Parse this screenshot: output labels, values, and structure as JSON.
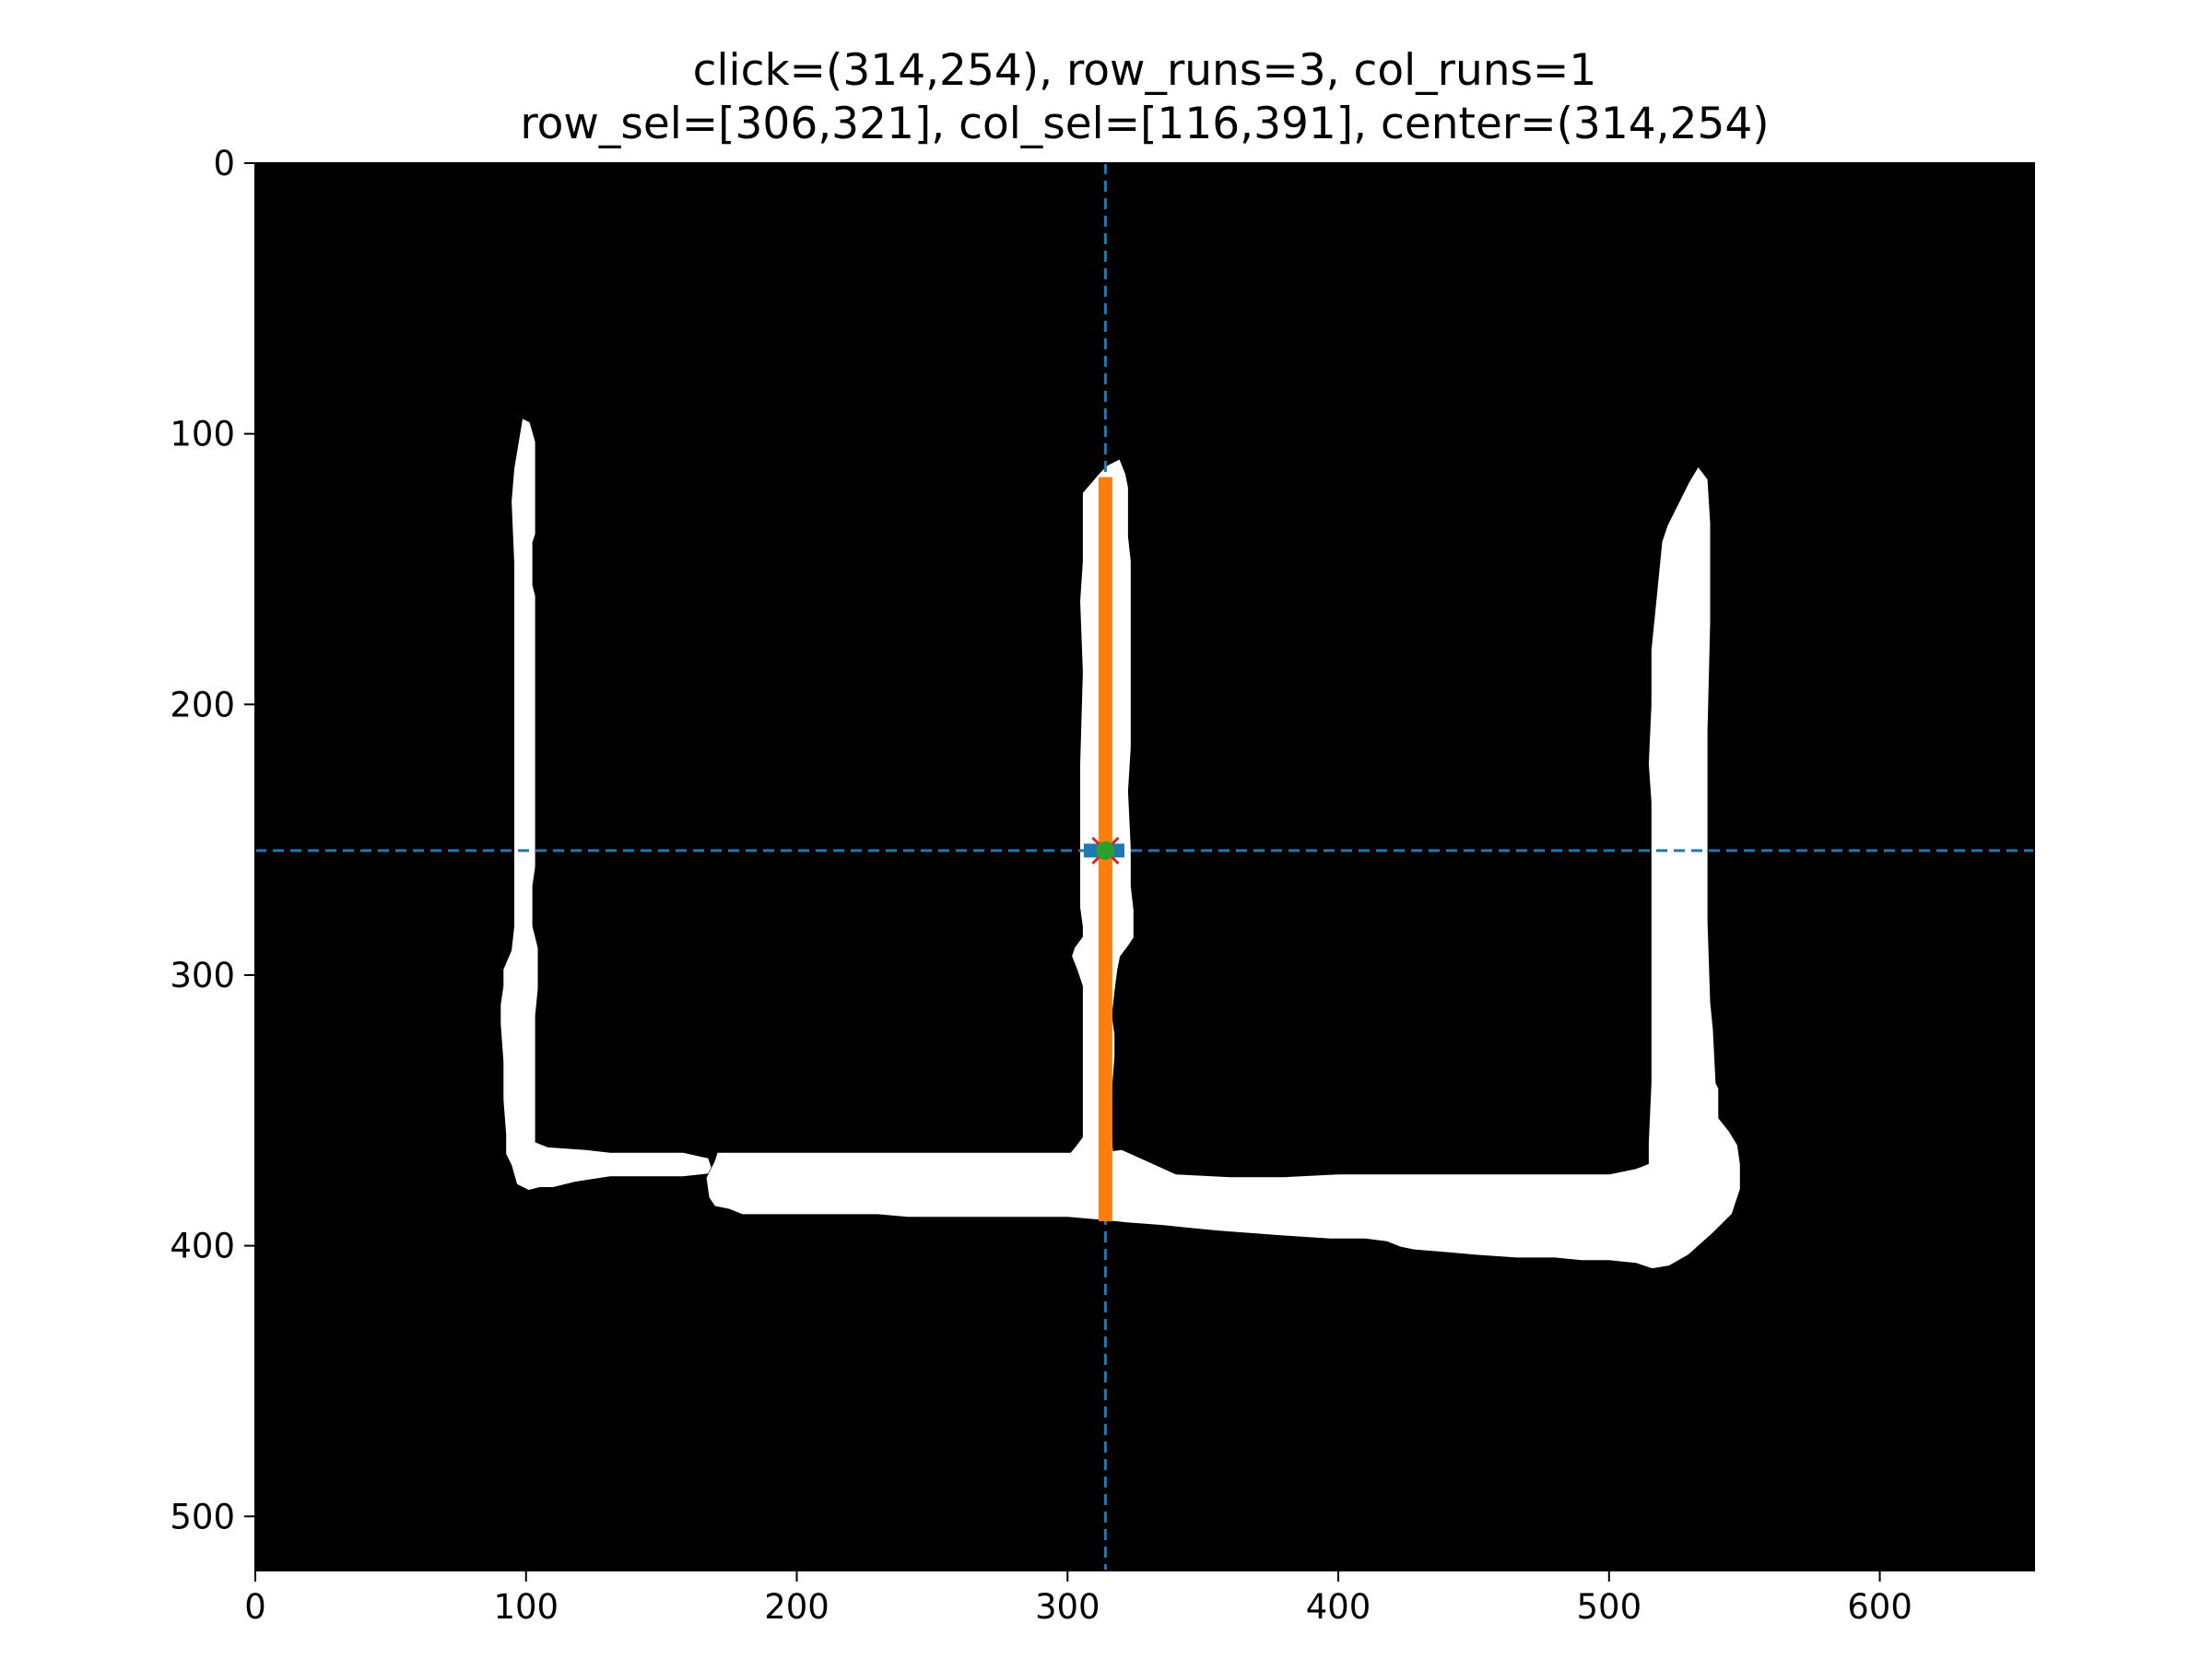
{
  "chart_data": {
    "type": "image",
    "title_lines": [
      "click=(314,254), row_runs=3, col_runs=1",
      "row_sel=[306,321], col_sel=[116,391], center=(314,254)"
    ],
    "xlim": [
      0,
      657
    ],
    "ylim": [
      520,
      0
    ],
    "x_ticks": [
      "0",
      "100",
      "200",
      "300",
      "400",
      "500",
      "600"
    ],
    "y_ticks": [
      "0",
      "100",
      "200",
      "300",
      "400",
      "500"
    ],
    "grid": false,
    "background_color": "#000000",
    "stroke_color": "#ffffff",
    "click": {
      "x": 314,
      "y": 254
    },
    "center": {
      "x": 314,
      "y": 254
    },
    "row_runs": 3,
    "col_runs": 1,
    "row_sel": {
      "y": 254,
      "x_from": 306,
      "x_to": 321,
      "color": "#1f77b4"
    },
    "col_sel": {
      "x": 314,
      "y_from": 116,
      "y_to": 391,
      "color": "#ff7f0e"
    },
    "guide_color": "#1f77b4",
    "marker_x_color": "#d62728",
    "marker_dot_color": "#2ca02c",
    "strokes": [
      {
        "name": "left-stroke",
        "points": [
          [
            99,
            95
          ],
          [
            101,
            96
          ],
          [
            103,
            103
          ],
          [
            103,
            137
          ],
          [
            102,
            140
          ],
          [
            102,
            156
          ],
          [
            103,
            160
          ],
          [
            103,
            260
          ],
          [
            102,
            267
          ],
          [
            102,
            282
          ],
          [
            104,
            290
          ],
          [
            104,
            305
          ],
          [
            103,
            315
          ],
          [
            103,
            362
          ],
          [
            108,
            364
          ],
          [
            122,
            365
          ],
          [
            131,
            366
          ],
          [
            158,
            366
          ],
          [
            167,
            368
          ],
          [
            168,
            371
          ],
          [
            167,
            373
          ],
          [
            158,
            374
          ],
          [
            131,
            374
          ],
          [
            118,
            376
          ],
          [
            110,
            378
          ],
          [
            105,
            378
          ],
          [
            101,
            379
          ],
          [
            97,
            377
          ],
          [
            95,
            370
          ],
          [
            93,
            366
          ],
          [
            93,
            359
          ],
          [
            92,
            346
          ],
          [
            92,
            332
          ],
          [
            91,
            318
          ],
          [
            91,
            311
          ],
          [
            92,
            304
          ],
          [
            92,
            298
          ],
          [
            95,
            291
          ],
          [
            96,
            282
          ],
          [
            96,
            266
          ],
          [
            96,
            168
          ],
          [
            96,
            148
          ],
          [
            95,
            125
          ],
          [
            96,
            113
          ]
        ]
      },
      {
        "name": "middle-stroke",
        "points": [
          [
            319,
            110
          ],
          [
            321,
            115
          ],
          [
            322,
            120
          ],
          [
            322,
            138
          ],
          [
            323,
            147
          ],
          [
            323,
            170
          ],
          [
            323,
            216
          ],
          [
            322,
            232
          ],
          [
            323,
            253
          ],
          [
            323,
            267
          ],
          [
            324,
            276
          ],
          [
            324,
            286
          ],
          [
            322,
            289
          ],
          [
            319,
            293
          ],
          [
            318,
            298
          ],
          [
            317,
            306
          ],
          [
            316,
            315
          ],
          [
            317,
            322
          ],
          [
            317,
            330
          ],
          [
            316,
            343
          ],
          [
            316,
            360
          ],
          [
            317,
            372
          ],
          [
            308,
            373
          ],
          [
            302,
            372
          ],
          [
            298,
            370
          ],
          [
            303,
            364
          ],
          [
            306,
            360
          ],
          [
            306,
            343
          ],
          [
            306,
            320
          ],
          [
            306,
            304
          ],
          [
            304,
            298
          ],
          [
            302,
            293
          ],
          [
            303,
            290
          ],
          [
            306,
            286
          ],
          [
            306,
            282
          ],
          [
            305,
            275
          ],
          [
            305,
            258
          ],
          [
            305,
            222
          ],
          [
            306,
            188
          ],
          [
            305,
            162
          ],
          [
            306,
            147
          ],
          [
            306,
            122
          ],
          [
            312,
            115
          ],
          [
            315,
            112
          ]
        ]
      },
      {
        "name": "right-stroke",
        "points": [
          [
            533,
            113
          ],
          [
            536,
            117
          ],
          [
            537,
            133
          ],
          [
            537,
            170
          ],
          [
            536,
            210
          ],
          [
            536,
            244
          ],
          [
            536,
            280
          ],
          [
            537,
            310
          ],
          [
            538,
            320
          ],
          [
            539,
            340
          ],
          [
            540,
            342
          ],
          [
            540,
            353
          ],
          [
            544,
            358
          ],
          [
            547,
            363
          ],
          [
            548,
            370
          ],
          [
            548,
            379
          ],
          [
            545,
            388
          ],
          [
            538,
            395
          ],
          [
            529,
            403
          ],
          [
            522,
            407
          ],
          [
            516,
            408
          ],
          [
            510,
            406
          ],
          [
            500,
            405
          ],
          [
            490,
            405
          ],
          [
            480,
            404
          ],
          [
            466,
            404
          ],
          [
            451,
            403
          ],
          [
            440,
            402
          ],
          [
            428,
            401
          ],
          [
            423,
            400
          ],
          [
            418,
            398
          ],
          [
            410,
            397
          ],
          [
            397,
            397
          ],
          [
            382,
            396
          ],
          [
            368,
            395
          ],
          [
            355,
            394
          ],
          [
            345,
            393
          ],
          [
            335,
            392
          ],
          [
            322,
            391
          ],
          [
            312,
            390
          ],
          [
            300,
            389
          ],
          [
            280,
            389
          ],
          [
            260,
            389
          ],
          [
            241,
            389
          ],
          [
            230,
            388
          ],
          [
            220,
            388
          ],
          [
            210,
            388
          ],
          [
            190,
            388
          ],
          [
            180,
            388
          ],
          [
            175,
            386
          ],
          [
            170,
            385
          ],
          [
            168,
            382
          ],
          [
            167,
            375
          ],
          [
            170,
            369
          ],
          [
            171,
            366
          ],
          [
            176,
            366
          ],
          [
            220,
            366
          ],
          [
            276,
            366
          ],
          [
            312,
            366
          ],
          [
            320,
            365
          ],
          [
            340,
            374
          ],
          [
            360,
            375
          ],
          [
            380,
            375
          ],
          [
            400,
            374
          ],
          [
            430,
            374
          ],
          [
            460,
            374
          ],
          [
            486,
            374
          ],
          [
            500,
            374
          ],
          [
            510,
            372
          ],
          [
            515,
            370
          ],
          [
            515,
            362
          ],
          [
            516,
            340
          ],
          [
            516,
            303
          ],
          [
            516,
            270
          ],
          [
            516,
            236
          ],
          [
            515,
            222
          ],
          [
            516,
            200
          ],
          [
            516,
            180
          ],
          [
            518,
            160
          ],
          [
            519,
            150
          ],
          [
            520,
            140
          ],
          [
            522,
            134
          ],
          [
            526,
            126
          ],
          [
            530,
            118
          ]
        ]
      }
    ]
  }
}
